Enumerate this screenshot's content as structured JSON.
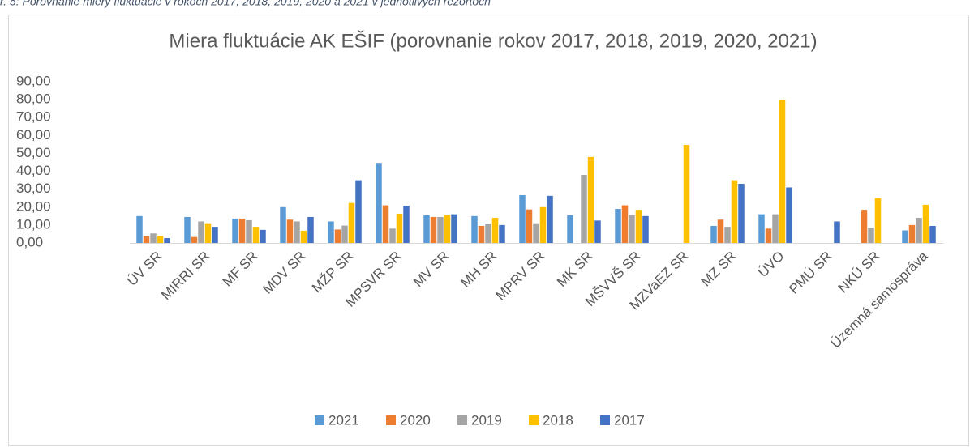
{
  "caption": "r. 5: Porovnanie miery fluktuácie v rokoch 2017, 2018, 2019, 2020 a 2021 v jednotlivých rezortoch",
  "chart_data": {
    "type": "bar",
    "title": "Miera fluktuácie AK EŠIF (porovnanie rokov 2017, 2018, 2019, 2020, 2021)",
    "categories": [
      "ÚV SR",
      "MIRRI SR",
      "MF SR",
      "MDV SR",
      "MŽP SR",
      "MPSVR SR",
      "MV SR",
      "MH SR",
      "MPRV SR",
      "MK SR",
      "MŠVVŠ SR",
      "MZVaEZ SR",
      "MZ SR",
      "ÚVO",
      "PMÚ SR",
      "NKÚ SR",
      "Územná samospráva"
    ],
    "series": [
      {
        "name": "2021",
        "color": "#5b9bd5",
        "values": [
          15,
          14.5,
          13.6,
          20,
          12,
          44.7,
          15.5,
          15,
          26.7,
          15.5,
          19,
          null,
          9.5,
          16,
          null,
          null,
          7
        ]
      },
      {
        "name": "2020",
        "color": "#ed7d31",
        "values": [
          4,
          3.3,
          13.6,
          13,
          7.5,
          21,
          14.5,
          9.5,
          18.7,
          null,
          21,
          null,
          13,
          8,
          null,
          18.5,
          10
        ]
      },
      {
        "name": "2019",
        "color": "#a5a5a5",
        "values": [
          5.3,
          12,
          12.7,
          12,
          9.7,
          8,
          14.5,
          10.7,
          11,
          38,
          15.5,
          null,
          9,
          16,
          null,
          8.5,
          14
        ]
      },
      {
        "name": "2018",
        "color": "#ffc000",
        "values": [
          4,
          11,
          9,
          6.8,
          22.3,
          16.3,
          15.5,
          14,
          20,
          48,
          18.5,
          54.7,
          35,
          80,
          null,
          25,
          21.3
        ]
      },
      {
        "name": "2017",
        "color": "#4472c4",
        "values": [
          2.7,
          9,
          7.3,
          14.5,
          35,
          20.7,
          16,
          10,
          26.3,
          12.5,
          15,
          null,
          33,
          31,
          12,
          null,
          9.5
        ]
      }
    ],
    "ylim": [
      0,
      90
    ],
    "yticks": [
      {
        "value": 0,
        "label": "0,00"
      },
      {
        "value": 10,
        "label": "10,00"
      },
      {
        "value": 20,
        "label": "20,00"
      },
      {
        "value": 30,
        "label": "30,00"
      },
      {
        "value": 40,
        "label": "40,00"
      },
      {
        "value": 50,
        "label": "50,00"
      },
      {
        "value": 60,
        "label": "60,00"
      },
      {
        "value": 70,
        "label": "70,00"
      },
      {
        "value": 80,
        "label": "80,00"
      },
      {
        "value": 90,
        "label": "90,00"
      }
    ],
    "grid": false,
    "legend": "bottom"
  }
}
